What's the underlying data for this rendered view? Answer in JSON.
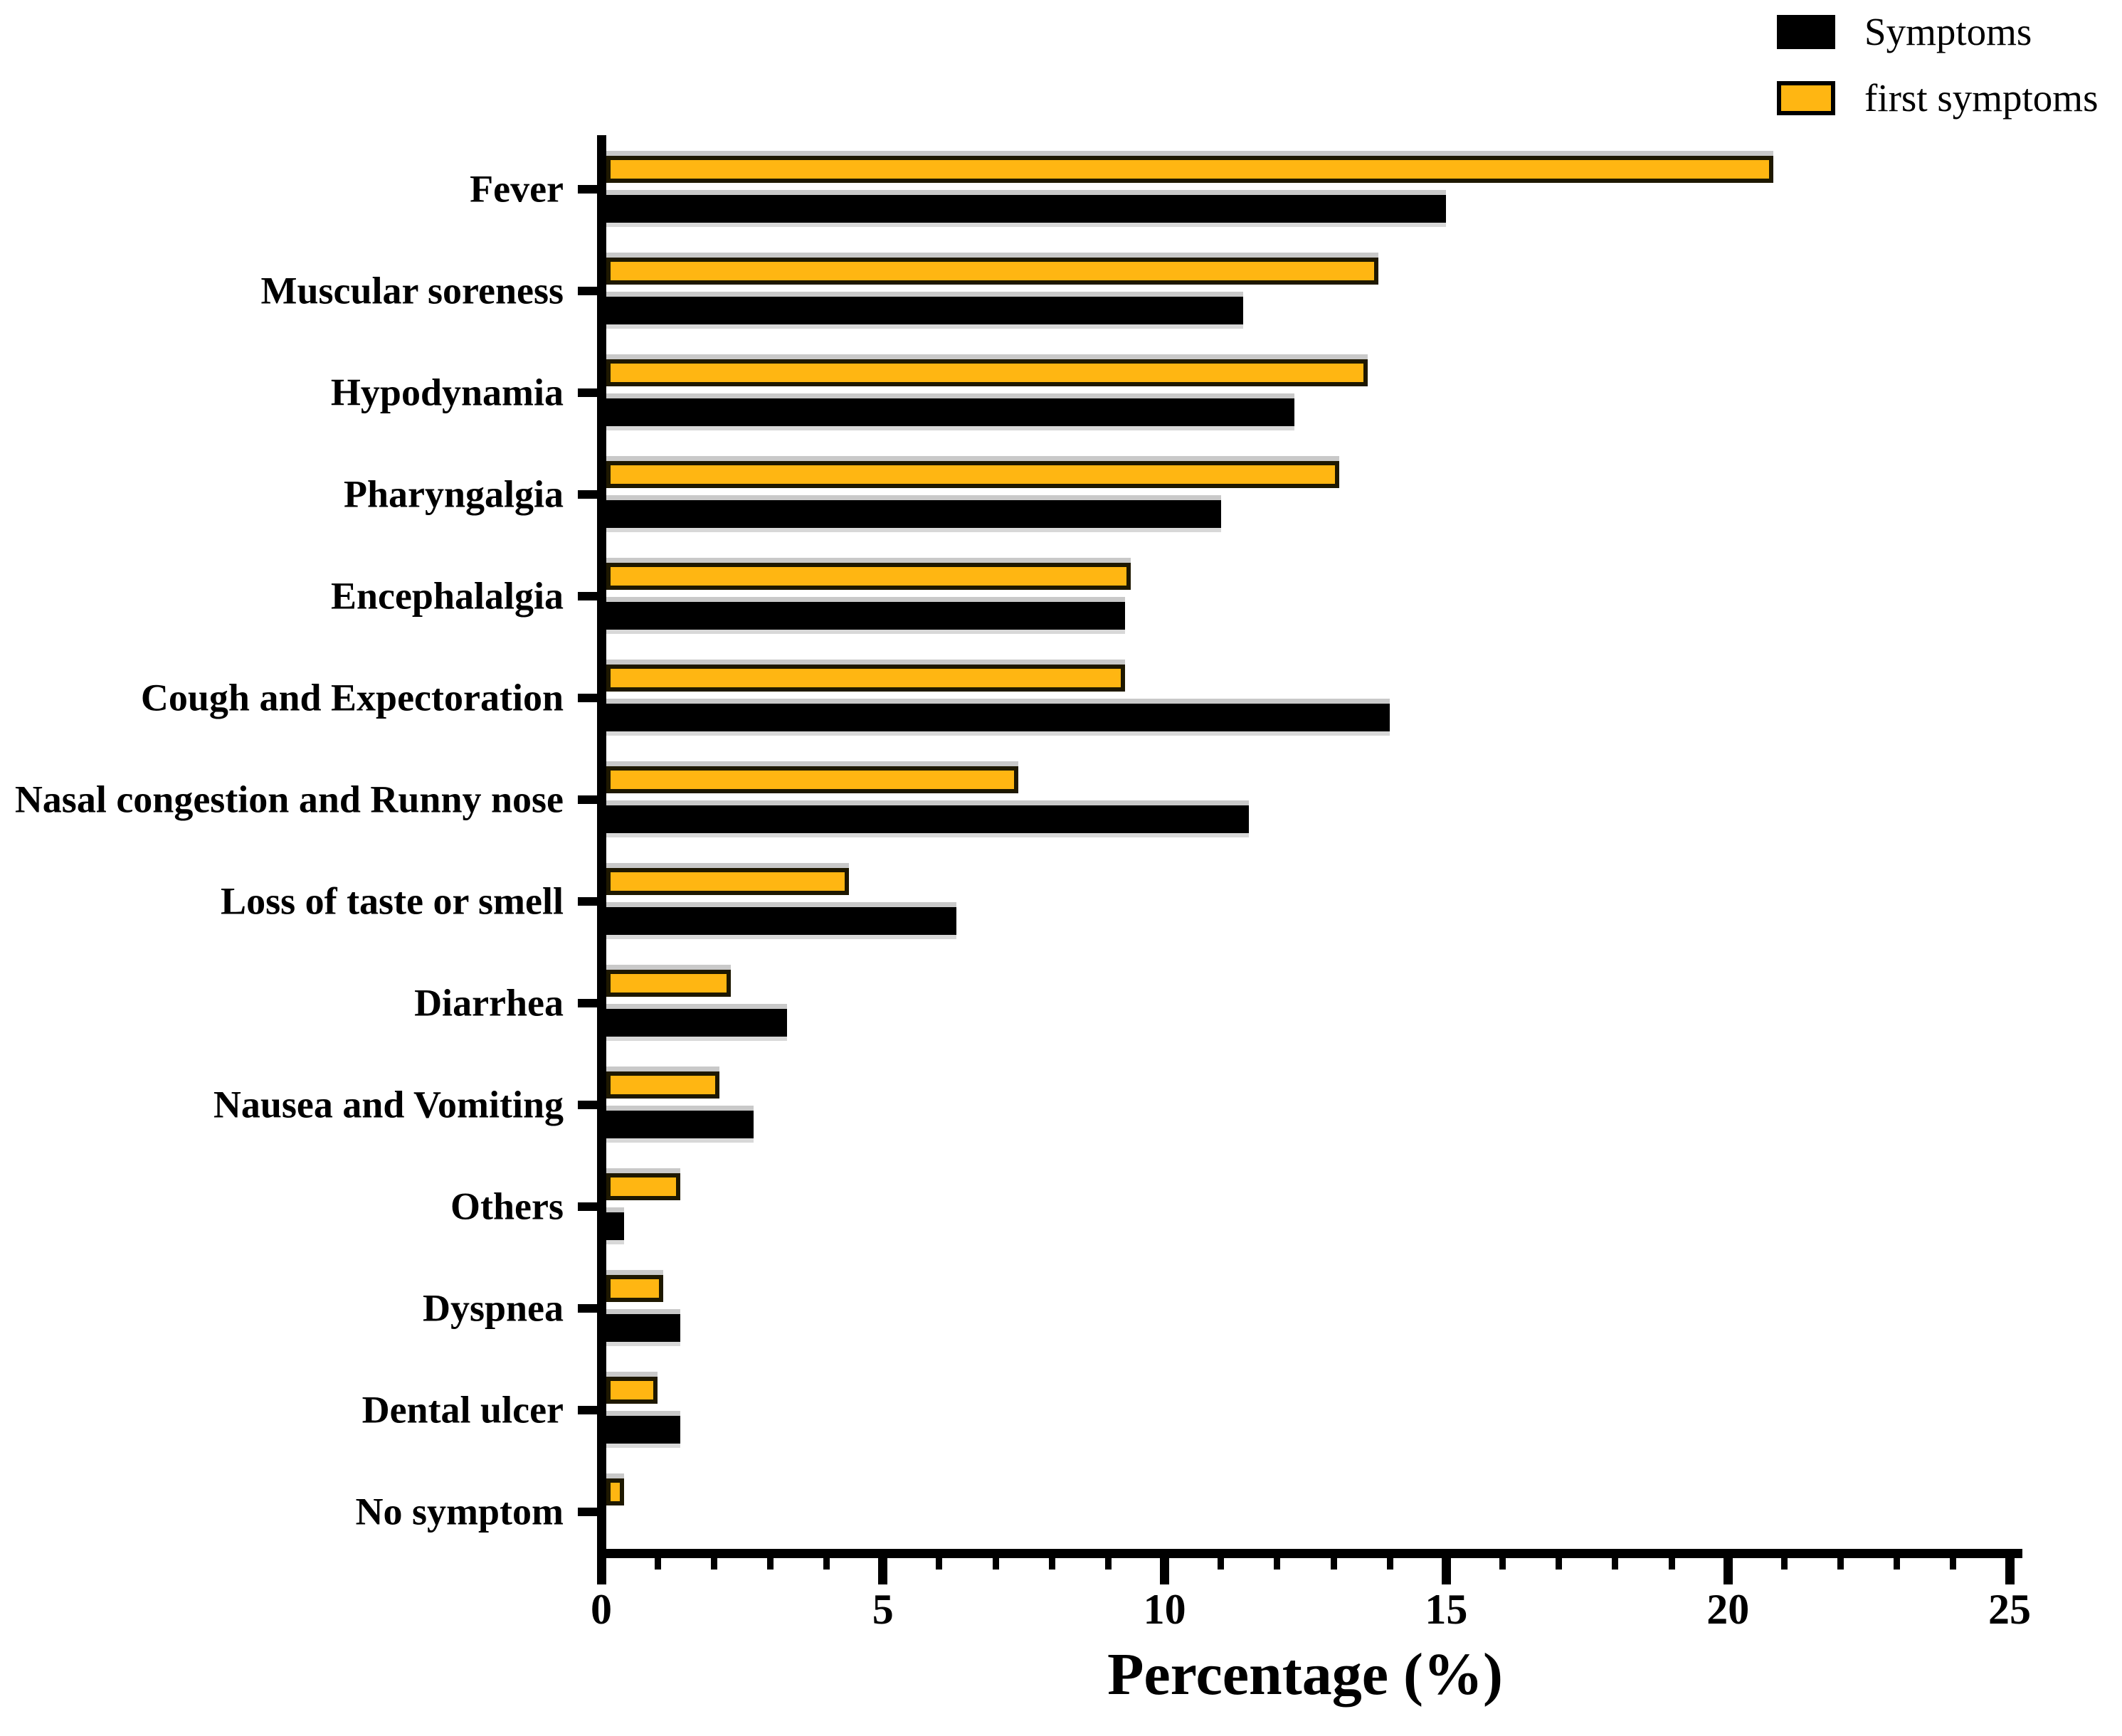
{
  "chart_data": {
    "type": "bar",
    "orientation": "horizontal",
    "title": "",
    "xlabel": "Percentage (%)",
    "ylabel": "",
    "xlim": [
      0,
      25
    ],
    "x_major_ticks": [
      0,
      5,
      10,
      15,
      20,
      25
    ],
    "x_minor_tick_step": 1,
    "grid": false,
    "legend_position": "top-right",
    "categories": [
      "Fever",
      "Muscular soreness",
      "Hypodynamia",
      "Pharyngalgia",
      "Encephalalgia",
      "Cough and Expectoration",
      "Nasal congestion and Runny nose",
      "Loss of taste or smell",
      "Diarrhea",
      "Nausea and Vomiting",
      "Others",
      "Dyspnea",
      "Dental ulcer",
      "No symptom"
    ],
    "series": [
      {
        "name": "Symptoms",
        "color": "#000000",
        "values": [
          15.0,
          11.4,
          12.3,
          11.0,
          9.3,
          14.0,
          11.5,
          6.3,
          3.3,
          2.7,
          0.4,
          1.4,
          1.4,
          0
        ]
      },
      {
        "name": "first symptoms",
        "color": "#FFB612",
        "values": [
          20.8,
          13.8,
          13.6,
          13.1,
          9.4,
          9.3,
          7.4,
          4.4,
          2.3,
          2.1,
          1.4,
          1.1,
          1.0,
          0.4
        ]
      }
    ]
  }
}
